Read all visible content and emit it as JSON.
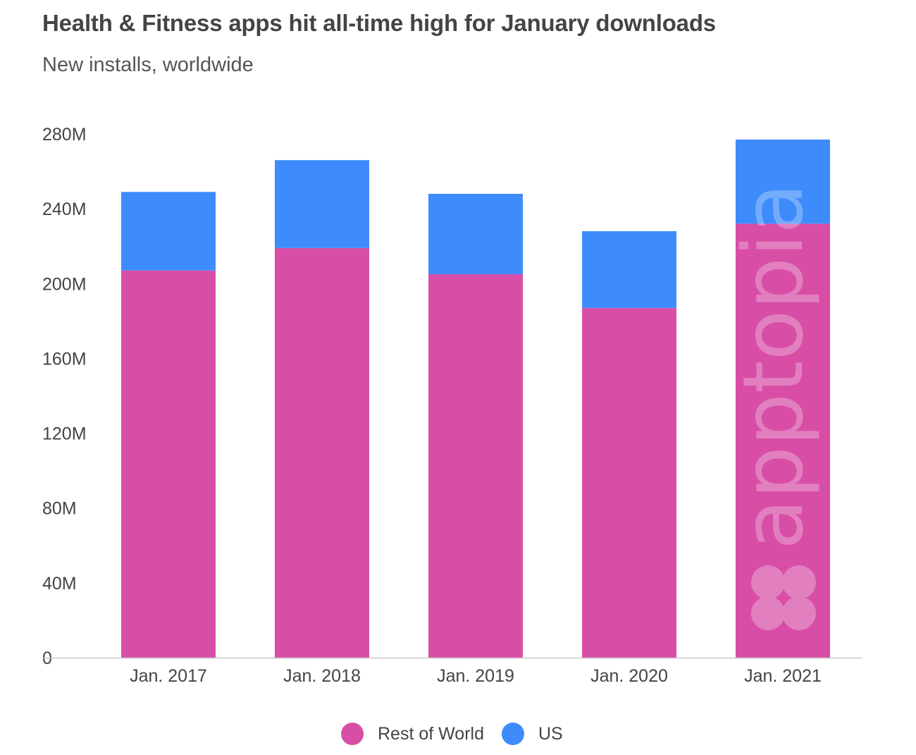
{
  "chart_data": {
    "type": "bar",
    "stacked": true,
    "title": "Health & Fitness apps hit all-time high for January downloads",
    "subtitle": "New installs, worldwide",
    "categories": [
      "Jan. 2017",
      "Jan. 2018",
      "Jan. 2019",
      "Jan. 2020",
      "Jan. 2021"
    ],
    "series": [
      {
        "name": "Rest of World",
        "color": "#d84ea7",
        "values": [
          207,
          219,
          205,
          187,
          232
        ]
      },
      {
        "name": "US",
        "color": "#3e8cfc",
        "values": [
          42,
          47,
          43,
          41,
          45
        ]
      }
    ],
    "ylim": [
      0,
      280
    ],
    "yticks": [
      0,
      40,
      80,
      120,
      160,
      200,
      240,
      280
    ],
    "ytick_labels": [
      "0",
      "40M",
      "80M",
      "120M",
      "160M",
      "200M",
      "240M",
      "280M"
    ],
    "xlabel": "",
    "ylabel": "",
    "legend_position": "bottom-center",
    "watermark": "apptopia"
  }
}
